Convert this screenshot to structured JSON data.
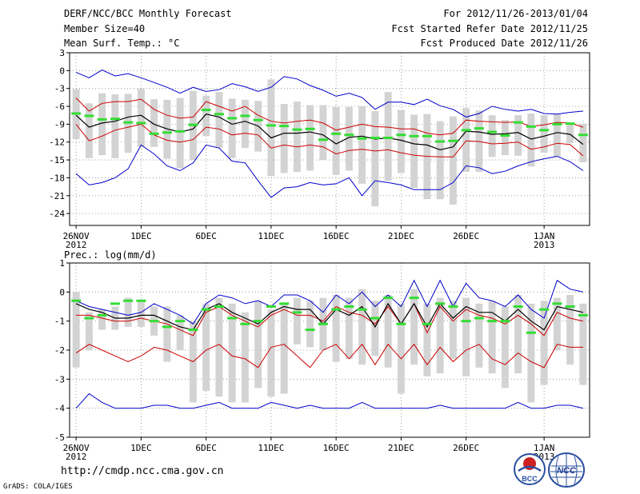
{
  "header": {
    "title": "DERF/NCC/BCC Monthly Forecast",
    "member_size": "Member Size=40",
    "variable": "Mean Surf. Temp.: °C",
    "period": "For 2012/11/26-2013/01/04",
    "start_date": "Fcst Started Refer Date 2012/11/25",
    "produced_date": "Fcst Produced Date 2012/11/26"
  },
  "footer": {
    "url": "http://cmdp.ncc.cma.gov.cn",
    "credit": "GrADS: COLA/IGES",
    "logo1_text": "BCC",
    "logo2_text": "NCC"
  },
  "colors": {
    "max_min": "#0000cc",
    "pct": "#cc0000",
    "mean": "#000000",
    "bar": "#d3d3d3",
    "marker": "#33dd33"
  },
  "chart_data": [
    {
      "type": "box",
      "title": "Mean Surf. Temp.: °C",
      "ylim": [
        -26,
        3
      ],
      "yticks": [
        3,
        0,
        -3,
        -6,
        -9,
        -12,
        -15,
        -18,
        -21,
        -24
      ],
      "xlim": [
        -0.5,
        39.5
      ],
      "xticks": [
        {
          "x": 0,
          "label": "26NOV",
          "year": "2012"
        },
        {
          "x": 5,
          "label": "1DEC"
        },
        {
          "x": 10,
          "label": "6DEC"
        },
        {
          "x": 15,
          "label": "11DEC"
        },
        {
          "x": 20,
          "label": "16DEC"
        },
        {
          "x": 25,
          "label": "21DEC"
        },
        {
          "x": 30,
          "label": "26DEC"
        },
        {
          "x": 36,
          "label": "1JAN",
          "year": "2013"
        }
      ],
      "series": [
        {
          "name": "max",
          "color": "#0000cc",
          "values": [
            -0.3,
            -1.2,
            0.1,
            -0.9,
            -0.5,
            -1.2,
            -2.0,
            -2.8,
            -3.8,
            -2.8,
            -3.5,
            -3.2,
            -2.2,
            -2.7,
            -3.5,
            -2.8,
            -1.0,
            -1.4,
            -2.5,
            -3.3,
            -4.3,
            -3.8,
            -4.5,
            -6.5,
            -5.3,
            -5.3,
            -5.7,
            -4.8,
            -5.9,
            -6.5,
            -7.8,
            -7.2,
            -6.0,
            -6.5,
            -6.8,
            -6.5,
            -7.2,
            -7.3,
            -7.0,
            -6.8
          ]
        },
        {
          "name": "upper",
          "color": "#cc0000",
          "values": [
            -4.6,
            -6.8,
            -5.5,
            -5.2,
            -5.2,
            -4.8,
            -6.5,
            -7.5,
            -8.0,
            -7.8,
            -5.2,
            -6.0,
            -6.8,
            -6.0,
            -7.5,
            -8.5,
            -8.8,
            -8.5,
            -8.3,
            -8.8,
            -10.0,
            -9.5,
            -9.0,
            -9.4,
            -9.5,
            -9.8,
            -9.8,
            -10.5,
            -10.8,
            -10.5,
            -8.3,
            -8.5,
            -8.6,
            -8.7,
            -8.6,
            -9.4,
            -9.1,
            -8.7,
            -8.8,
            -9.5
          ]
        },
        {
          "name": "mean",
          "color": "#000000",
          "values": [
            -7.5,
            -9.5,
            -8.8,
            -8.5,
            -7.8,
            -7.5,
            -9.0,
            -9.8,
            -10.3,
            -9.8,
            -7.3,
            -7.8,
            -9.0,
            -8.5,
            -9.3,
            -11.3,
            -10.5,
            -10.5,
            -10.3,
            -10.8,
            -12.3,
            -11.2,
            -11.0,
            -11.5,
            -11.3,
            -11.7,
            -12.3,
            -12.5,
            -13.3,
            -12.8,
            -10.2,
            -10.3,
            -10.7,
            -10.6,
            -10.4,
            -11.5,
            -11.0,
            -10.4,
            -10.7,
            -12.4
          ]
        },
        {
          "name": "lower",
          "color": "#cc0000",
          "values": [
            -9.0,
            -11.8,
            -11.0,
            -10.0,
            -9.5,
            -9.0,
            -10.8,
            -11.7,
            -12.0,
            -11.6,
            -9.5,
            -9.8,
            -10.8,
            -10.5,
            -10.8,
            -13.0,
            -12.5,
            -12.8,
            -12.5,
            -12.8,
            -14.0,
            -13.4,
            -13.2,
            -13.5,
            -13.3,
            -13.8,
            -14.2,
            -14.4,
            -14.5,
            -14.5,
            -11.8,
            -11.9,
            -12.3,
            -12.2,
            -12.0,
            -13.2,
            -12.8,
            -12.2,
            -12.4,
            -14.3
          ]
        },
        {
          "name": "min",
          "color": "#0000cc",
          "values": [
            -17.3,
            -19.2,
            -18.8,
            -18.0,
            -16.5,
            -12.5,
            -14.0,
            -16.0,
            -16.8,
            -15.5,
            -12.5,
            -13.0,
            -15.2,
            -15.5,
            -18.5,
            -21.3,
            -19.7,
            -19.5,
            -18.8,
            -19.2,
            -19.0,
            -18.0,
            -21.0,
            -18.5,
            -18.8,
            -19.2,
            -20.0,
            -20.0,
            -20.0,
            -18.8,
            -16.0,
            -16.3,
            -17.3,
            -16.9,
            -16.0,
            -15.3,
            -14.8,
            -14.4,
            -15.3,
            -16.8
          ]
        }
      ],
      "boxes": {
        "color": "#d3d3d3",
        "low": [
          -11.5,
          -14.7,
          -14.2,
          -14.7,
          -13.8,
          -12.8,
          -12.8,
          -14.8,
          -16.4,
          -15.0,
          -11.0,
          -13.0,
          -14.7,
          -13.0,
          -13.6,
          -17.7,
          -17.2,
          -17.0,
          -16.8,
          -15.0,
          -17.5,
          -16.8,
          -19.0,
          -22.8,
          -18.5,
          -17.2,
          -19.7,
          -21.6,
          -21.6,
          -22.5,
          -17.0,
          -17.0,
          -14.5,
          -14.2,
          -14.3,
          -16.1,
          -13.8,
          -14.5,
          -12.2,
          -15.4
        ],
        "high": [
          -3.1,
          -5.5,
          -3.8,
          -4.0,
          -3.9,
          -3.0,
          -4.8,
          -4.9,
          -4.6,
          -3.4,
          -4.2,
          -3.6,
          -4.7,
          -4.9,
          -5.1,
          -1.5,
          -5.6,
          -5.2,
          -5.8,
          -5.8,
          -6.1,
          -6.1,
          -6.0,
          -6.8,
          -3.6,
          -6.6,
          -7.4,
          -7.3,
          -8.5,
          -7.7,
          -6.3,
          -6.7,
          -7.5,
          -8.3,
          -7.5,
          -7.2,
          -7.5,
          -7.2,
          -8.9,
          -8.9
        ],
        "marker": [
          -7.2,
          -7.6,
          -8.2,
          -8.1,
          -8.7,
          -8.8,
          -10.6,
          -10.4,
          -10.2,
          -9.1,
          -6.6,
          -7.3,
          -8.0,
          -7.6,
          -8.3,
          -9.2,
          -9.3,
          -9.9,
          -9.8,
          -11.6,
          -10.6,
          -10.8,
          -11.4,
          -11.3,
          -11.3,
          -10.8,
          -11.0,
          -11.0,
          -11.9,
          -11.8,
          -10.0,
          -9.7,
          -10.3,
          -10.9,
          -8.7,
          -9.4,
          -10.0,
          -9.0,
          -8.9,
          -10.8
        ]
      }
    },
    {
      "type": "box",
      "title": "Prec.: log(mm/d)",
      "ylim": [
        -5,
        1
      ],
      "yticks": [
        1,
        0,
        -1,
        -2,
        -3,
        -4,
        -5
      ],
      "xlim": [
        -0.5,
        39.5
      ],
      "xticks": [
        {
          "x": 0,
          "label": "26NOV",
          "year": "2012"
        },
        {
          "x": 5,
          "label": "1DEC"
        },
        {
          "x": 10,
          "label": "6DEC"
        },
        {
          "x": 15,
          "label": "11DEC"
        },
        {
          "x": 20,
          "label": "16DEC"
        },
        {
          "x": 25,
          "label": "21DEC"
        },
        {
          "x": 30,
          "label": "26DEC"
        },
        {
          "x": 36,
          "label": "1JAN",
          "year": "2013"
        }
      ],
      "series": [
        {
          "name": "max",
          "color": "#0000cc",
          "values": [
            -0.3,
            -0.5,
            -0.6,
            -0.7,
            -0.8,
            -0.7,
            -0.4,
            -0.6,
            -0.8,
            -1.1,
            -0.4,
            -0.1,
            -0.2,
            -0.4,
            -0.3,
            -0.5,
            -0.1,
            -0.1,
            -0.3,
            -0.7,
            -0.1,
            -0.4,
            0.0,
            -0.5,
            -0.1,
            -0.5,
            0.4,
            -0.5,
            0.4,
            -0.5,
            0.3,
            -0.2,
            -0.3,
            -0.5,
            -0.1,
            -0.6,
            -0.9,
            0.4,
            0.1,
            0.0
          ]
        },
        {
          "name": "upper",
          "color": "#cc0000",
          "values": [
            -0.8,
            -0.8,
            -0.9,
            -1.0,
            -1.0,
            -0.9,
            -1.0,
            -1.1,
            -1.3,
            -1.5,
            -0.7,
            -0.5,
            -0.8,
            -1.0,
            -1.2,
            -0.8,
            -0.6,
            -0.8,
            -0.8,
            -1.0,
            -0.5,
            -0.7,
            -0.8,
            -1.1,
            -0.5,
            -1.1,
            -0.4,
            -1.4,
            -0.5,
            -1.0,
            -0.6,
            -0.8,
            -0.9,
            -1.1,
            -0.8,
            -1.1,
            -1.5,
            -0.7,
            -0.9,
            -1.0
          ]
        },
        {
          "name": "mean",
          "color": "#000000",
          "values": [
            -0.4,
            -0.6,
            -0.7,
            -0.9,
            -0.9,
            -0.8,
            -0.8,
            -1.0,
            -1.2,
            -1.3,
            -0.6,
            -0.4,
            -0.7,
            -0.9,
            -1.1,
            -0.7,
            -0.5,
            -0.6,
            -0.6,
            -1.1,
            -0.6,
            -0.8,
            -0.5,
            -1.2,
            -0.4,
            -1.1,
            -0.4,
            -1.2,
            -0.4,
            -0.9,
            -0.5,
            -0.7,
            -0.7,
            -1.0,
            -0.6,
            -1.0,
            -1.3,
            -0.5,
            -0.6,
            -0.7
          ]
        },
        {
          "name": "lower",
          "color": "#cc0000",
          "values": [
            -2.1,
            -1.8,
            -2.0,
            -2.2,
            -2.4,
            -2.2,
            -1.9,
            -2.0,
            -2.2,
            -2.4,
            -2.0,
            -1.8,
            -2.2,
            -2.3,
            -2.6,
            -1.9,
            -1.8,
            -2.2,
            -2.6,
            -2.0,
            -1.8,
            -2.3,
            -1.8,
            -2.5,
            -1.8,
            -2.3,
            -1.8,
            -2.5,
            -1.9,
            -2.4,
            -2.0,
            -1.8,
            -2.3,
            -2.5,
            -2.1,
            -2.4,
            -2.6,
            -1.8,
            -1.9,
            -1.9
          ]
        },
        {
          "name": "min",
          "color": "#0000cc",
          "values": [
            -4.0,
            -3.5,
            -3.8,
            -4.0,
            -4.0,
            -4.0,
            -3.9,
            -3.9,
            -4.0,
            -4.0,
            -3.9,
            -3.8,
            -4.0,
            -4.0,
            -4.0,
            -3.8,
            -3.9,
            -4.0,
            -3.9,
            -4.0,
            -4.0,
            -4.0,
            -3.8,
            -4.0,
            -4.0,
            -4.0,
            -4.0,
            -4.0,
            -3.9,
            -4.0,
            -4.0,
            -4.0,
            -4.0,
            -4.0,
            -3.8,
            -4.0,
            -4.0,
            -3.9,
            -3.9,
            -4.0
          ]
        },
        {
          "name": "marker",
          "color": "#33dd33",
          "values": [
            -0.3,
            -0.9,
            -0.8,
            -0.4,
            -0.3,
            -0.3,
            -1.0,
            -1.2,
            -1.0,
            -1.3,
            -0.6,
            -0.5,
            -0.9,
            -1.1,
            -1.0,
            -0.5,
            -0.4,
            -0.7,
            -1.3,
            -1.1,
            -0.6,
            -0.5,
            -0.6,
            -0.9,
            -0.2,
            -1.1,
            -0.2,
            -1.1,
            -0.4,
            -0.5,
            -1.0,
            -0.9,
            -1.0,
            -1.0,
            -0.5,
            -1.4,
            -0.6,
            -0.4,
            -0.5,
            -0.8
          ]
        }
      ],
      "boxes": {
        "color": "#d3d3d3",
        "low": [
          -2.6,
          -2.0,
          -1.3,
          -1.3,
          -1.2,
          -1.2,
          -1.5,
          -2.4,
          -2.0,
          -3.8,
          -3.4,
          -3.6,
          -3.8,
          -3.8,
          -3.3,
          -3.6,
          -3.5,
          -1.8,
          -1.9,
          -2.0,
          -2.4,
          -2.3,
          -2.5,
          -2.2,
          -2.6,
          -3.5,
          -2.5,
          -2.9,
          -2.8,
          -2.3,
          -2.9,
          -2.6,
          -2.8,
          -3.3,
          -2.8,
          -3.8,
          -3.2,
          -2.0,
          -2.5,
          -3.2
        ],
        "high": [
          0.0,
          -0.7,
          -0.6,
          -0.5,
          -0.2,
          -0.3,
          -0.5,
          -0.5,
          -0.8,
          -1.0,
          -0.4,
          -0.2,
          -0.4,
          -0.7,
          -0.3,
          -0.6,
          -0.4,
          -0.2,
          -0.3,
          -0.2,
          -0.1,
          -0.2,
          0.1,
          -0.3,
          -0.1,
          -0.4,
          0.1,
          -0.4,
          -0.2,
          -0.3,
          -0.2,
          -0.4,
          -0.3,
          -0.5,
          -0.1,
          -0.4,
          -0.3,
          -0.2,
          -0.1,
          -0.4
        ]
      }
    }
  ]
}
